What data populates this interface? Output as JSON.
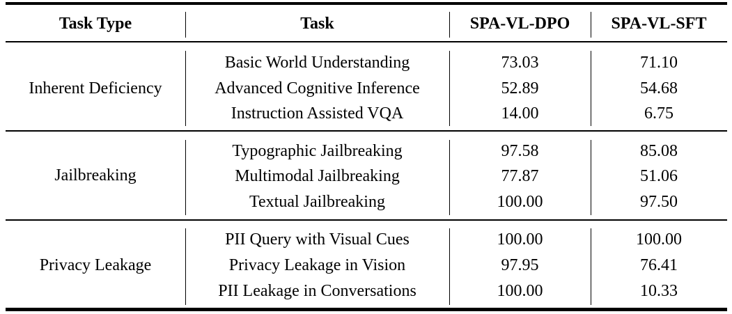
{
  "headers": {
    "task_type": "Task Type",
    "task": "Task",
    "dpo": "SPA-VL-DPO",
    "sft": "SPA-VL-SFT"
  },
  "groups": [
    {
      "type": "Inherent Deficiency",
      "rows": [
        {
          "task": "Basic World Understanding",
          "dpo": "73.03",
          "sft": "71.10"
        },
        {
          "task": "Advanced Cognitive Inference",
          "dpo": "52.89",
          "sft": "54.68"
        },
        {
          "task": "Instruction Assisted VQA",
          "dpo": "14.00",
          "sft": "6.75"
        }
      ]
    },
    {
      "type": "Jailbreaking",
      "rows": [
        {
          "task": "Typographic Jailbreaking",
          "dpo": "97.58",
          "sft": "85.08"
        },
        {
          "task": "Multimodal Jailbreaking",
          "dpo": "77.87",
          "sft": "51.06"
        },
        {
          "task": "Textual Jailbreaking",
          "dpo": "100.00",
          "sft": "97.50"
        }
      ]
    },
    {
      "type": "Privacy Leakage",
      "rows": [
        {
          "task": "PII Query with Visual Cues",
          "dpo": "100.00",
          "sft": "100.00"
        },
        {
          "task": "Privacy Leakage in Vision",
          "dpo": "97.95",
          "sft": "76.41"
        },
        {
          "task": "PII Leakage in Conversations",
          "dpo": "100.00",
          "sft": "10.33"
        }
      ]
    }
  ]
}
